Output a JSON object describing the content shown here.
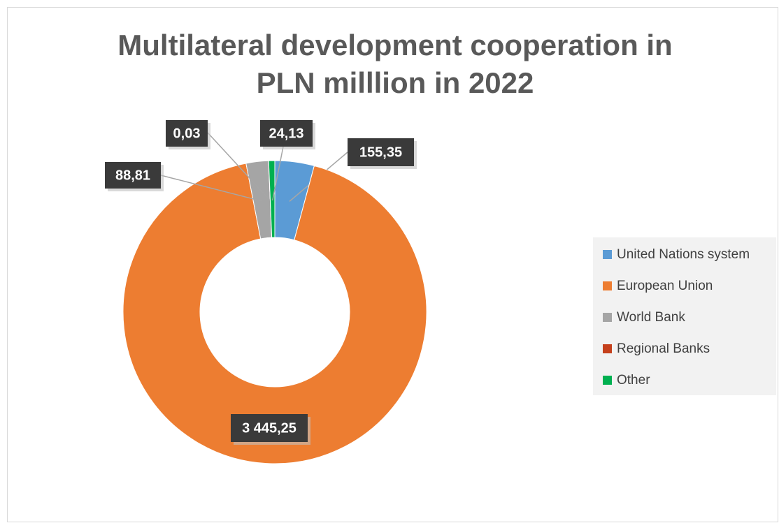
{
  "chart_data": {
    "type": "donut",
    "title": "Multilateral development cooperation in PLN milllion in 2022",
    "categories": [
      "United Nations system",
      "European Union",
      "World Bank",
      "Regional Banks",
      "Other"
    ],
    "values": [
      155.35,
      3445.25,
      88.81,
      0.03,
      24.13
    ],
    "value_labels": [
      "155,35",
      "3 445,25",
      "88,81",
      "0,03",
      "24,13"
    ],
    "colors": [
      "#5b9bd5",
      "#ed7d31",
      "#a5a5a5",
      "#c5401c",
      "#00b050"
    ],
    "legend": "right"
  }
}
